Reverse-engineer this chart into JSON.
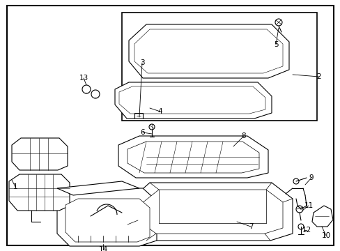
{
  "background_color": "#ffffff",
  "border_color": "#000000",
  "line_color": "#000000",
  "text_color": "#000000",
  "figsize": [
    4.89,
    3.6
  ],
  "dpi": 100
}
